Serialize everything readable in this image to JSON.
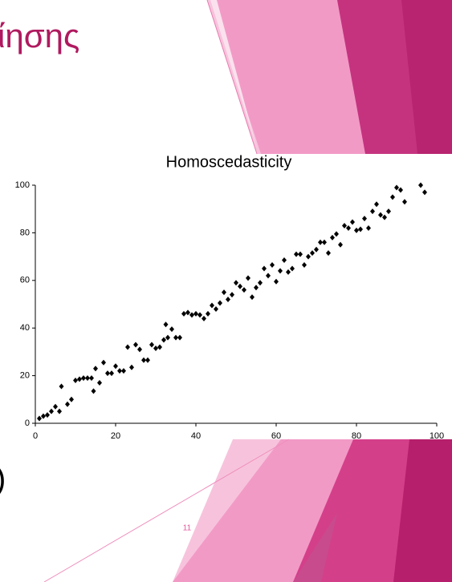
{
  "title_fragment": "ίησης",
  "paren": ")",
  "page_number": "11",
  "chart_data": {
    "type": "scatter",
    "title": "Homoscedasticity",
    "color": "#000000",
    "grid": false,
    "xlim": [
      0,
      100
    ],
    "ylim": [
      0,
      100
    ],
    "xticks": [
      0,
      20,
      40,
      60,
      80,
      100
    ],
    "yticks": [
      0,
      20,
      40,
      60,
      80,
      100
    ],
    "series": [
      {
        "name": "data",
        "x": [
          1,
          2,
          3,
          4,
          5,
          6,
          6.5,
          8,
          9,
          10,
          11,
          12,
          13,
          14,
          14.5,
          15,
          16,
          17,
          18,
          19,
          20,
          21,
          22,
          23,
          24,
          25,
          26,
          27,
          28,
          29,
          30,
          31,
          32,
          32.5,
          33,
          34,
          35,
          36,
          37,
          38,
          39,
          40,
          41,
          42,
          43,
          44,
          45,
          46,
          47,
          48,
          49,
          50,
          51,
          52,
          53,
          54,
          55,
          56,
          57,
          58,
          59,
          60,
          61,
          62,
          63,
          64,
          65,
          66,
          67,
          68,
          69,
          70,
          71,
          72,
          73,
          74,
          75,
          76,
          77,
          78,
          79,
          80,
          81,
          82,
          83,
          84,
          85,
          86,
          87,
          88,
          89,
          90,
          91,
          92,
          96,
          97
        ],
        "values": [
          2,
          3,
          3.5,
          5,
          7,
          5,
          15.5,
          8,
          10,
          18,
          18.5,
          19,
          19,
          19,
          13.5,
          23,
          17,
          25.5,
          21,
          21,
          24,
          22,
          22,
          32,
          23.5,
          33,
          31,
          26.5,
          26.5,
          33,
          31.5,
          32,
          35,
          41.5,
          36,
          39.5,
          36,
          36,
          46,
          46.5,
          45.5,
          46,
          45.5,
          44,
          46,
          49.5,
          48,
          50.5,
          55,
          52,
          54,
          59,
          57.5,
          56,
          61,
          53,
          57,
          59,
          65,
          62,
          66.5,
          59.5,
          64,
          68.5,
          63.5,
          65,
          71,
          71,
          66.5,
          70,
          71.5,
          73,
          76,
          76,
          71.5,
          78,
          79.5,
          75,
          83,
          82,
          84.5,
          81,
          81.5,
          86,
          82,
          89,
          92,
          87.5,
          86.5,
          89,
          95,
          99,
          98,
          93,
          100,
          97
        ]
      }
    ]
  }
}
